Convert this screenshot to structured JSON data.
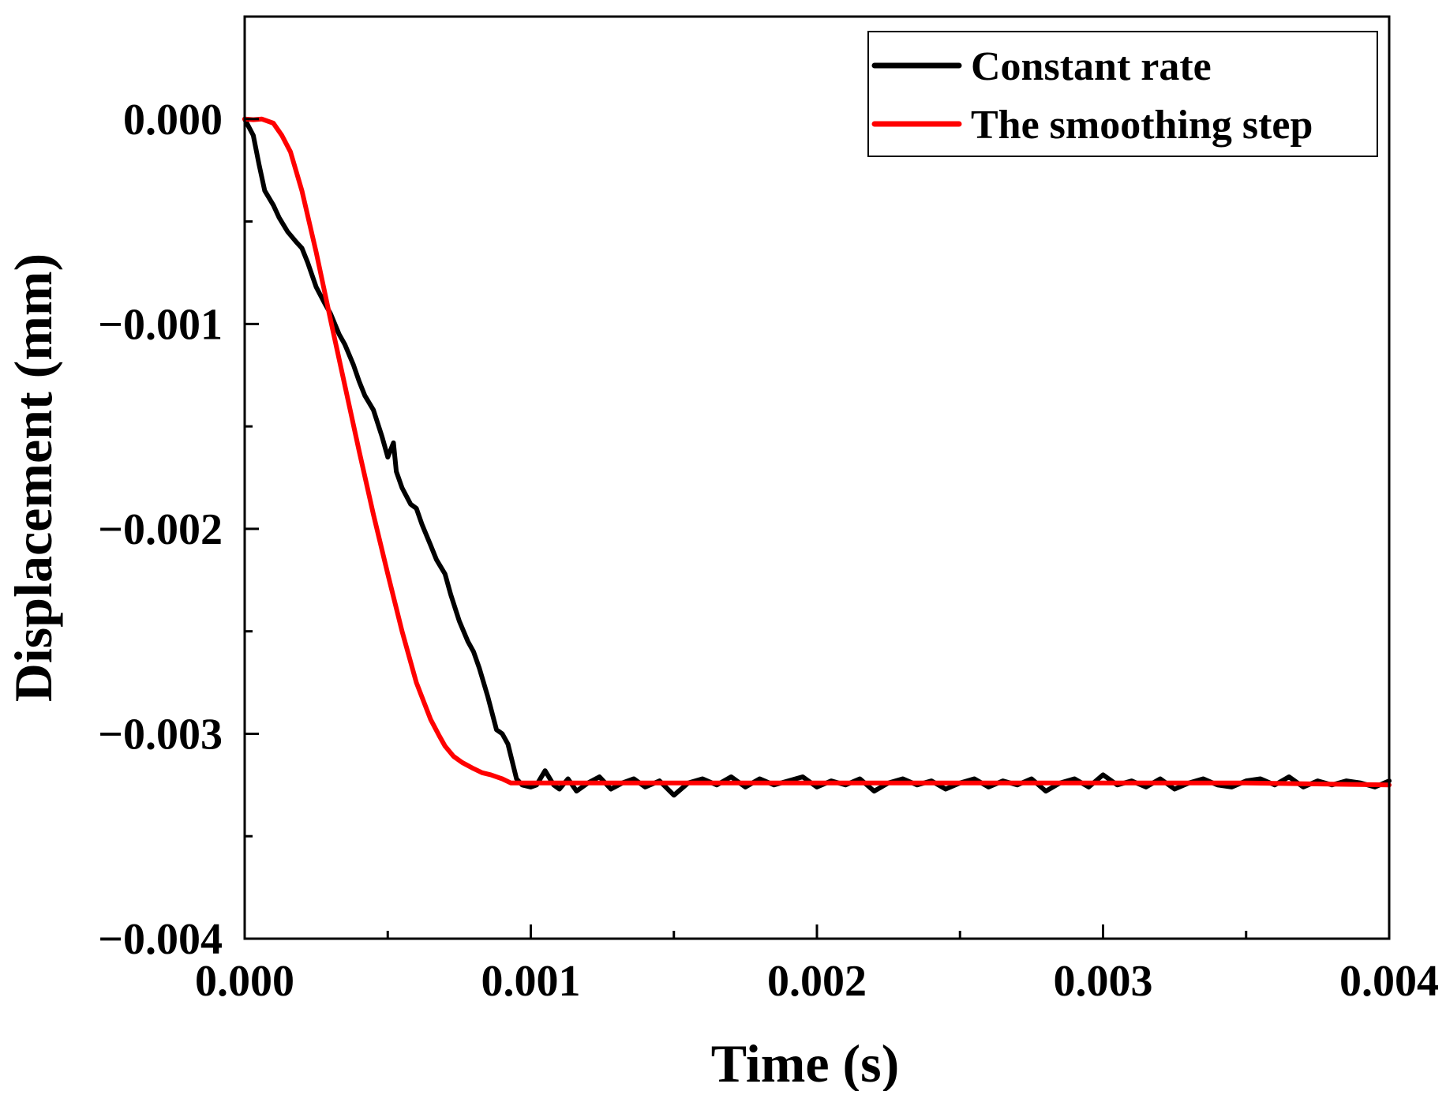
{
  "chart_data": {
    "type": "line",
    "title": "",
    "xlabel": "Time (s)",
    "ylabel": "Displacement (mm)",
    "xlim": [
      0,
      0.004
    ],
    "ylim": [
      -0.004,
      0.0005
    ],
    "grid": false,
    "legend_position": "top-right",
    "x_ticks": [
      0.0,
      0.001,
      0.002,
      0.003,
      0.004
    ],
    "x_tick_labels": [
      "0.000",
      "0.001",
      "0.002",
      "0.003",
      "0.004"
    ],
    "y_ticks": [
      0.0,
      -0.001,
      -0.002,
      -0.003,
      -0.004
    ],
    "y_tick_labels": [
      "0.000",
      "−0.001",
      "−0.002",
      "−0.003",
      "−0.004"
    ],
    "series": [
      {
        "name": "Constant rate",
        "color": "#000000",
        "x": [
          0.0,
          3e-05,
          5e-05,
          7e-05,
          0.0001,
          0.00012,
          0.00015,
          0.00018,
          0.0002,
          0.00022,
          0.00025,
          0.00028,
          0.0003,
          0.00033,
          0.00035,
          0.00038,
          0.0004,
          0.00042,
          0.00045,
          0.00048,
          0.0005,
          0.00052,
          0.00053,
          0.00055,
          0.00058,
          0.0006,
          0.00062,
          0.00065,
          0.00067,
          0.0007,
          0.00072,
          0.00075,
          0.00078,
          0.0008,
          0.00082,
          0.00085,
          0.00088,
          0.0009,
          0.00092,
          0.00095,
          0.00097,
          0.001,
          0.00102,
          0.00105,
          0.00108,
          0.0011,
          0.00113,
          0.00116,
          0.0012,
          0.00124,
          0.00128,
          0.00132,
          0.00136,
          0.0014,
          0.00145,
          0.0015,
          0.00155,
          0.0016,
          0.00165,
          0.0017,
          0.00175,
          0.0018,
          0.00185,
          0.0019,
          0.00195,
          0.002,
          0.00205,
          0.0021,
          0.00215,
          0.0022,
          0.00225,
          0.0023,
          0.00235,
          0.0024,
          0.00245,
          0.0025,
          0.00255,
          0.0026,
          0.00265,
          0.0027,
          0.00275,
          0.0028,
          0.00285,
          0.0029,
          0.00295,
          0.003,
          0.00305,
          0.0031,
          0.00315,
          0.0032,
          0.00325,
          0.0033,
          0.00335,
          0.0034,
          0.00345,
          0.0035,
          0.00355,
          0.0036,
          0.00365,
          0.0037,
          0.00375,
          0.0038,
          0.00385,
          0.0039,
          0.00395,
          0.004
        ],
        "y": [
          0.0,
          -8e-05,
          -0.00022,
          -0.00035,
          -0.00042,
          -0.00048,
          -0.00055,
          -0.0006,
          -0.00063,
          -0.0007,
          -0.00082,
          -0.0009,
          -0.00095,
          -0.00105,
          -0.0011,
          -0.0012,
          -0.00128,
          -0.00135,
          -0.00142,
          -0.00155,
          -0.00165,
          -0.00158,
          -0.00172,
          -0.0018,
          -0.00188,
          -0.0019,
          -0.00198,
          -0.00208,
          -0.00215,
          -0.00222,
          -0.00232,
          -0.00245,
          -0.00255,
          -0.0026,
          -0.00268,
          -0.00282,
          -0.00298,
          -0.003,
          -0.00305,
          -0.00322,
          -0.00325,
          -0.00326,
          -0.00325,
          -0.00318,
          -0.00325,
          -0.00327,
          -0.00322,
          -0.00328,
          -0.00324,
          -0.00321,
          -0.00327,
          -0.00324,
          -0.00322,
          -0.00326,
          -0.00323,
          -0.0033,
          -0.00324,
          -0.00322,
          -0.00325,
          -0.00321,
          -0.00326,
          -0.00322,
          -0.00325,
          -0.00323,
          -0.00321,
          -0.00326,
          -0.00323,
          -0.00325,
          -0.00322,
          -0.00328,
          -0.00324,
          -0.00322,
          -0.00325,
          -0.00323,
          -0.00327,
          -0.00324,
          -0.00322,
          -0.00326,
          -0.00323,
          -0.00325,
          -0.00322,
          -0.00328,
          -0.00324,
          -0.00322,
          -0.00326,
          -0.0032,
          -0.00325,
          -0.00323,
          -0.00326,
          -0.00322,
          -0.00327,
          -0.00324,
          -0.00322,
          -0.00325,
          -0.00326,
          -0.00323,
          -0.00322,
          -0.00325,
          -0.00321,
          -0.00326,
          -0.00323,
          -0.00325,
          -0.00323,
          -0.00324,
          -0.00326,
          -0.00323
        ]
      },
      {
        "name": "The smoothing step",
        "color": "#ff0000",
        "x": [
          0.0,
          3e-05,
          6e-05,
          0.0001,
          0.00013,
          0.00016,
          0.0002,
          0.00025,
          0.0003,
          0.00035,
          0.0004,
          0.00045,
          0.0005,
          0.00055,
          0.0006,
          0.00065,
          0.00068,
          0.0007,
          0.00073,
          0.00076,
          0.0008,
          0.00083,
          0.00086,
          0.0009,
          0.00093,
          0.001,
          0.0015,
          0.002,
          0.0025,
          0.003,
          0.0035,
          0.004
        ],
        "y": [
          0.0,
          -3e-06,
          0.0,
          -2e-05,
          -8e-05,
          -0.00016,
          -0.00035,
          -0.00065,
          -0.00098,
          -0.0013,
          -0.00162,
          -0.00193,
          -0.00222,
          -0.0025,
          -0.00275,
          -0.00293,
          -0.00301,
          -0.00306,
          -0.00311,
          -0.00314,
          -0.00317,
          -0.00319,
          -0.0032,
          -0.00322,
          -0.00324,
          -0.00324,
          -0.00324,
          -0.00324,
          -0.00324,
          -0.00324,
          -0.00324,
          -0.00325
        ]
      }
    ]
  }
}
